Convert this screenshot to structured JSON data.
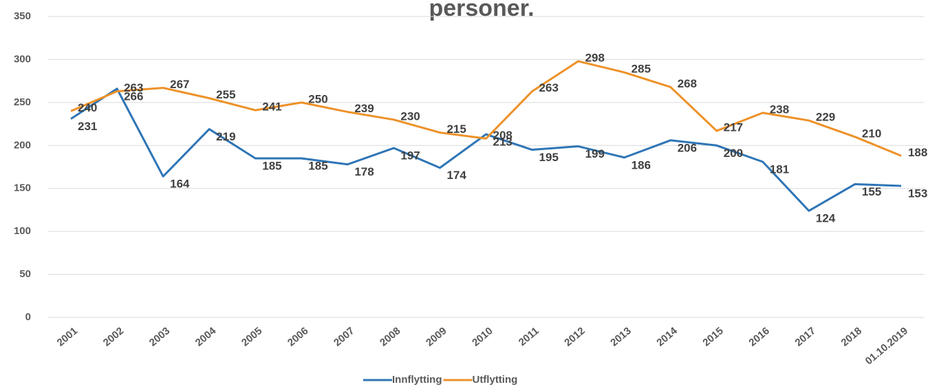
{
  "chart_data": {
    "type": "line",
    "title": "personer.",
    "categories": [
      "2001",
      "2002",
      "2003",
      "2004",
      "2005",
      "2006",
      "2007",
      "2008",
      "2009",
      "2010",
      "2011",
      "2012",
      "2013",
      "2014",
      "2015",
      "2016",
      "2017",
      "2018",
      "01.10.2019"
    ],
    "series": [
      {
        "name": "Innflytting",
        "color": "#2e75b6",
        "values": [
          231,
          266,
          164,
          219,
          185,
          185,
          178,
          197,
          174,
          213,
          195,
          199,
          186,
          206,
          200,
          181,
          124,
          155,
          153
        ]
      },
      {
        "name": "Utflytting",
        "color": "#ed9128",
        "values": [
          240,
          263,
          267,
          255,
          241,
          250,
          239,
          230,
          215,
          208,
          263,
          298,
          285,
          268,
          217,
          238,
          229,
          210,
          188
        ]
      }
    ],
    "ylim": [
      0,
      350
    ],
    "yticks": [
      0,
      50,
      100,
      150,
      200,
      250,
      300,
      350
    ],
    "grid": true,
    "legend": "bottom"
  }
}
